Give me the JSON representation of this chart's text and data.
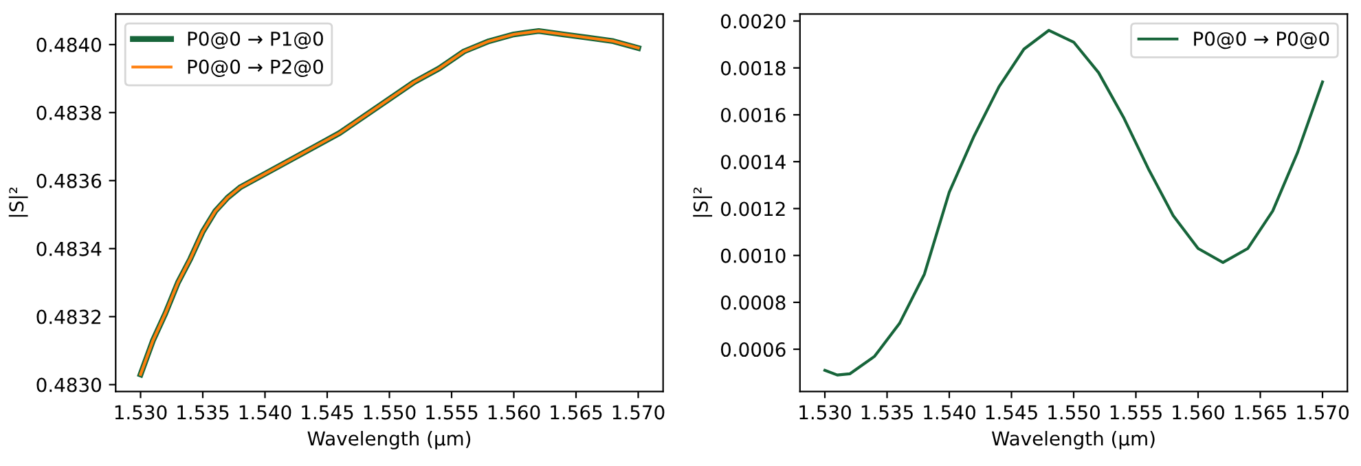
{
  "chart_data": [
    {
      "type": "line",
      "xlabel": "Wavelength (µm)",
      "ylabel": "|S|²",
      "legend": "top left",
      "grid": false,
      "x": [
        1.53,
        1.531,
        1.532,
        1.533,
        1.534,
        1.535,
        1.536,
        1.537,
        1.538,
        1.54,
        1.542,
        1.544,
        1.546,
        1.548,
        1.55,
        1.552,
        1.554,
        1.556,
        1.558,
        1.56,
        1.562,
        1.564,
        1.566,
        1.568,
        1.57
      ],
      "xlim": [
        1.528,
        1.572
      ],
      "xticks": [
        {
          "value": 1.53,
          "label": "1.530"
        },
        {
          "value": 1.535,
          "label": "1.535"
        },
        {
          "value": 1.54,
          "label": "1.540"
        },
        {
          "value": 1.545,
          "label": "1.545"
        },
        {
          "value": 1.55,
          "label": "1.550"
        },
        {
          "value": 1.555,
          "label": "1.555"
        },
        {
          "value": 1.56,
          "label": "1.560"
        },
        {
          "value": 1.565,
          "label": "1.565"
        },
        {
          "value": 1.57,
          "label": "1.570"
        }
      ],
      "ylim": [
        0.48298,
        0.48409
      ],
      "yticks": [
        {
          "value": 0.483,
          "label": "0.4830"
        },
        0.4832,
        0.4834,
        0.4836,
        0.4838,
        {
          "value": 0.484,
          "label": "0.4840"
        }
      ],
      "series": [
        {
          "name": "P0@0 → P1@0",
          "color": "#17653a",
          "values": [
            0.48303,
            0.48313,
            0.48321,
            0.4833,
            0.48337,
            0.48345,
            0.48351,
            0.48355,
            0.48358,
            0.48362,
            0.48366,
            0.4837,
            0.48374,
            0.48379,
            0.48384,
            0.48389,
            0.48393,
            0.48398,
            0.48401,
            0.48403,
            0.48404,
            0.48403,
            0.48402,
            0.48401,
            0.48399
          ]
        },
        {
          "name": "P0@0 → P2@0",
          "color": "#ff7f0e",
          "values": [
            0.48303,
            0.48313,
            0.48321,
            0.4833,
            0.48337,
            0.48345,
            0.48351,
            0.48355,
            0.48358,
            0.48362,
            0.48366,
            0.4837,
            0.48374,
            0.48379,
            0.48384,
            0.48389,
            0.48393,
            0.48398,
            0.48401,
            0.48403,
            0.48404,
            0.48403,
            0.48402,
            0.48401,
            0.48399
          ]
        }
      ]
    },
    {
      "type": "line",
      "xlabel": "Wavelength (µm)",
      "ylabel": "|S|²",
      "legend": "top right",
      "grid": false,
      "x": [
        1.53,
        1.531,
        1.532,
        1.534,
        1.536,
        1.538,
        1.54,
        1.542,
        1.544,
        1.546,
        1.548,
        1.55,
        1.552,
        1.554,
        1.556,
        1.558,
        1.56,
        1.562,
        1.564,
        1.566,
        1.568,
        1.57
      ],
      "xlim": [
        1.528,
        1.572
      ],
      "xticks": [
        {
          "value": 1.53,
          "label": "1.530"
        },
        {
          "value": 1.535,
          "label": "1.535"
        },
        {
          "value": 1.54,
          "label": "1.540"
        },
        {
          "value": 1.545,
          "label": "1.545"
        },
        {
          "value": 1.55,
          "label": "1.550"
        },
        {
          "value": 1.555,
          "label": "1.555"
        },
        {
          "value": 1.56,
          "label": "1.560"
        },
        {
          "value": 1.565,
          "label": "1.565"
        },
        {
          "value": 1.57,
          "label": "1.570"
        }
      ],
      "ylim": [
        0.00042,
        0.00203
      ],
      "yticks": [
        {
          "value": 0.0006,
          "label": "0.0006"
        },
        {
          "value": 0.0008,
          "label": "0.0008"
        },
        {
          "value": 0.001,
          "label": "0.0010"
        },
        {
          "value": 0.0012,
          "label": "0.0012"
        },
        {
          "value": 0.0014,
          "label": "0.0014"
        },
        {
          "value": 0.0016,
          "label": "0.0016"
        },
        {
          "value": 0.0018,
          "label": "0.0018"
        },
        {
          "value": 0.002,
          "label": "0.0020"
        }
      ],
      "series": [
        {
          "name": "P0@0 → P0@0",
          "color": "#17653a",
          "values": [
            0.00051,
            0.00049,
            0.000495,
            0.00057,
            0.00071,
            0.00092,
            0.00127,
            0.00151,
            0.00172,
            0.00188,
            0.00196,
            0.00191,
            0.00178,
            0.00159,
            0.00137,
            0.00117,
            0.00103,
            0.00097,
            0.00103,
            0.00119,
            0.00144,
            0.00174
          ]
        }
      ]
    }
  ]
}
